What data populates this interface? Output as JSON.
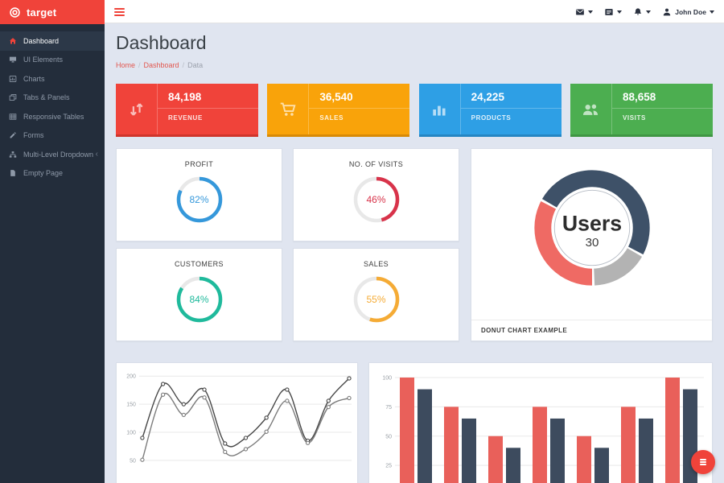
{
  "brand": {
    "name": "target",
    "color": "#f0433a"
  },
  "topbar": {
    "user_name": "John Doe",
    "icons": [
      "envelope-icon",
      "tasks-icon",
      "bell-icon",
      "user-icon"
    ]
  },
  "sidebar": {
    "bg_color": "#232d3b",
    "items": [
      {
        "label": "Dashboard",
        "icon": "home-icon",
        "active": true
      },
      {
        "label": "UI Elements",
        "icon": "desktop-icon",
        "active": false
      },
      {
        "label": "Charts",
        "icon": "chart-image-icon",
        "active": false
      },
      {
        "label": "Tabs & Panels",
        "icon": "window-icon",
        "active": false
      },
      {
        "label": "Responsive Tables",
        "icon": "table-icon",
        "active": false
      },
      {
        "label": "Forms",
        "icon": "pencil-icon",
        "active": false
      },
      {
        "label": "Multi-Level Dropdown",
        "icon": "sitemap-icon",
        "active": false,
        "chevron": "‹"
      },
      {
        "label": "Empty Page",
        "icon": "file-icon",
        "active": false
      }
    ]
  },
  "page": {
    "title": "Dashboard",
    "breadcrumb_separator": "/",
    "breadcrumb": [
      {
        "label": "Home",
        "link": true
      },
      {
        "label": "Dashboard",
        "link": true
      },
      {
        "label": "Data",
        "link": false
      }
    ]
  },
  "stats": [
    {
      "value": "84,198",
      "label": "REVENUE",
      "icon": "arrows-sort-icon",
      "color": "#f0433a"
    },
    {
      "value": "36,540",
      "label": "SALES",
      "icon": "cart-icon",
      "color": "#f9a30a"
    },
    {
      "value": "24,225",
      "label": "PRODUCTS",
      "icon": "bar-chart-icon",
      "color": "#2e9fe5"
    },
    {
      "value": "88,658",
      "label": "VISITS",
      "icon": "users-icon",
      "color": "#4cae50"
    }
  ],
  "gauges": [
    {
      "title": "PROFIT",
      "percent": 82,
      "percent_label": "82%",
      "color": "#3598db"
    },
    {
      "title": "NO. OF VISITS",
      "percent": 46,
      "percent_label": "46%",
      "color": "#d8334a"
    },
    {
      "title": "CUSTOMERS",
      "percent": 84,
      "percent_label": "84%",
      "color": "#1fba9c"
    },
    {
      "title": "SALES",
      "percent": 55,
      "percent_label": "55%",
      "color": "#f5ab35"
    }
  ],
  "chart_data": [
    {
      "id": "donut-chart",
      "type": "pie",
      "title": "DONUT CHART EXAMPLE",
      "center_label": "Users",
      "center_total": 30,
      "start_angle_deg": -60,
      "slices": [
        {
          "name": "segment-dark",
          "value": 15,
          "color": "#3e5168"
        },
        {
          "name": "segment-gray",
          "value": 5,
          "color": "#b3b3b3"
        },
        {
          "name": "segment-red",
          "value": 10,
          "color": "#ef6a64"
        }
      ]
    },
    {
      "id": "line-chart",
      "type": "line",
      "x_labels_visible": false,
      "yticks": [
        50,
        100,
        150,
        200
      ],
      "grid": true,
      "series": [
        {
          "name": "series-1",
          "color": "#474747",
          "values": [
            90,
            186,
            150,
            176,
            80,
            90,
            126,
            176,
            85,
            156,
            196
          ]
        },
        {
          "name": "series-2",
          "color": "#7c7c7c",
          "values": [
            51,
            167,
            131,
            162,
            65,
            70,
            101,
            156,
            81,
            145,
            161
          ]
        }
      ]
    },
    {
      "id": "bar-chart",
      "type": "bar",
      "x_labels_visible": false,
      "yticks": [
        25,
        50,
        75,
        100
      ],
      "grid": true,
      "series": [
        {
          "name": "series-1",
          "color": "#e9605a",
          "values": [
            100,
            75,
            50,
            75,
            50,
            75,
            100
          ]
        },
        {
          "name": "series-2",
          "color": "#3d4b5e",
          "values": [
            90,
            65,
            40,
            65,
            40,
            65,
            90
          ]
        }
      ]
    }
  ]
}
